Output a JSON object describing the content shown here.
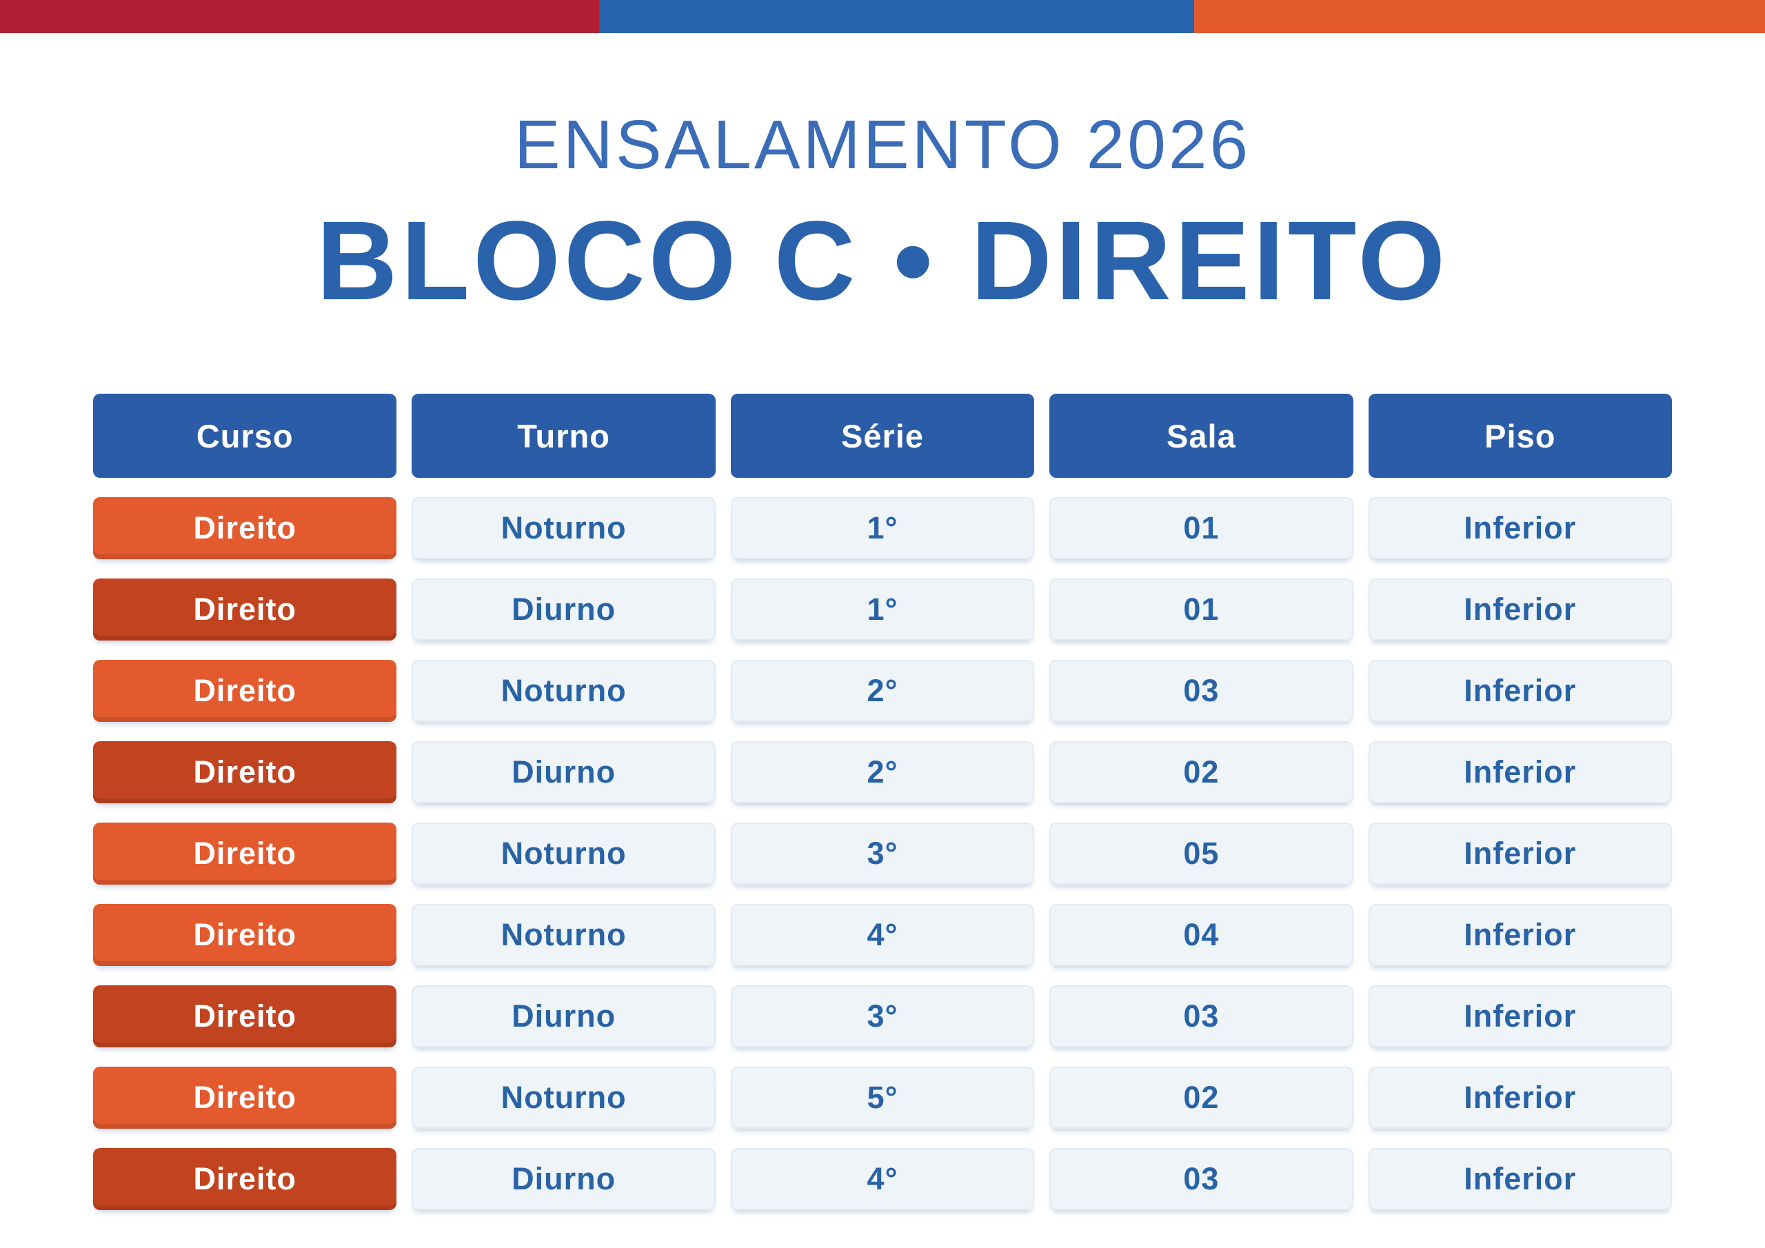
{
  "top_bar": {
    "segments": [
      {
        "name": "red",
        "color": "#AF1E33"
      },
      {
        "name": "blue",
        "color": "#2463AD"
      },
      {
        "name": "orange",
        "color": "#E35B2D"
      }
    ]
  },
  "header": {
    "eyebrow": "ENSALAMENTO 2026",
    "title": "BLOCO C • DIREITO"
  },
  "colors": {
    "header_blue": "#2A5CA7",
    "cell_text_blue": "#2863A6",
    "light_cell_bg": "#EFF4F9",
    "row_orange": "#E25A2E",
    "row_dark_orange": "#C2431F",
    "eyebrow_blue": "#3A6CB8",
    "title_blue": "#2A63AC"
  },
  "table": {
    "headers": [
      "Curso",
      "Turno",
      "Série",
      "Sala",
      "Piso"
    ],
    "rows": [
      {
        "curso": "Direito",
        "turno": "Noturno",
        "serie": "1°",
        "sala": "01",
        "piso": "Inferior",
        "curso_variant": "orange"
      },
      {
        "curso": "Direito",
        "turno": "Diurno",
        "serie": "1°",
        "sala": "01",
        "piso": "Inferior",
        "curso_variant": "dark"
      },
      {
        "curso": "Direito",
        "turno": "Noturno",
        "serie": "2°",
        "sala": "03",
        "piso": "Inferior",
        "curso_variant": "orange"
      },
      {
        "curso": "Direito",
        "turno": "Diurno",
        "serie": "2°",
        "sala": "02",
        "piso": "Inferior",
        "curso_variant": "dark"
      },
      {
        "curso": "Direito",
        "turno": "Noturno",
        "serie": "3°",
        "sala": "05",
        "piso": "Inferior",
        "curso_variant": "orange"
      },
      {
        "curso": "Direito",
        "turno": "Noturno",
        "serie": "4°",
        "sala": "04",
        "piso": "Inferior",
        "curso_variant": "orange"
      },
      {
        "curso": "Direito",
        "turno": "Diurno",
        "serie": "3°",
        "sala": "03",
        "piso": "Inferior",
        "curso_variant": "dark"
      },
      {
        "curso": "Direito",
        "turno": "Noturno",
        "serie": "5°",
        "sala": "02",
        "piso": "Inferior",
        "curso_variant": "orange"
      },
      {
        "curso": "Direito",
        "turno": "Diurno",
        "serie": "4°",
        "sala": "03",
        "piso": "Inferior",
        "curso_variant": "dark"
      }
    ]
  }
}
